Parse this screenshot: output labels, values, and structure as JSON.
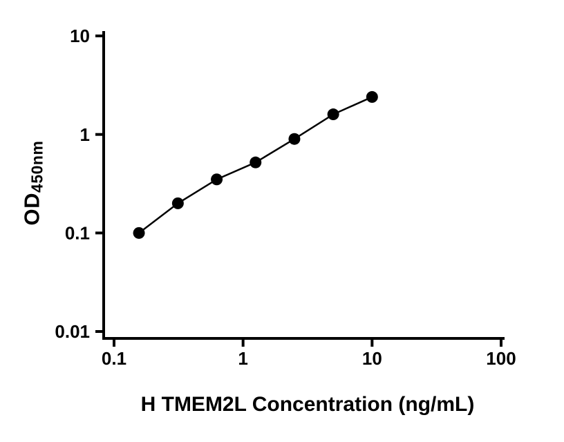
{
  "chart_data": {
    "type": "scatter",
    "xlabel": "H TMEM2L Concentration (ng/mL)",
    "ylabel": "OD",
    "ylabel_subscript": "450nm",
    "xscale": "log",
    "yscale": "log",
    "xlim": [
      0.1,
      100
    ],
    "ylim": [
      0.01,
      10
    ],
    "x": [
      0.156,
      0.3125,
      0.625,
      1.25,
      2.5,
      5,
      10
    ],
    "y": [
      0.1,
      0.2,
      0.35,
      0.52,
      0.9,
      1.6,
      2.4
    ],
    "x_ticks": [
      {
        "value": 0.1,
        "label": "0.1"
      },
      {
        "value": 1,
        "label": "1"
      },
      {
        "value": 10,
        "label": "10"
      },
      {
        "value": 100,
        "label": "100"
      }
    ],
    "y_ticks": [
      {
        "value": 0.01,
        "label": "0.01"
      },
      {
        "value": 0.1,
        "label": "0.1"
      },
      {
        "value": 1,
        "label": "1"
      },
      {
        "value": 10,
        "label": "10"
      }
    ],
    "grid": false,
    "legend": "none",
    "marker": "circle",
    "marker_color": "#000000",
    "line_color": "#000000",
    "axis_color": "#000000",
    "background_color": "#ffffff"
  }
}
